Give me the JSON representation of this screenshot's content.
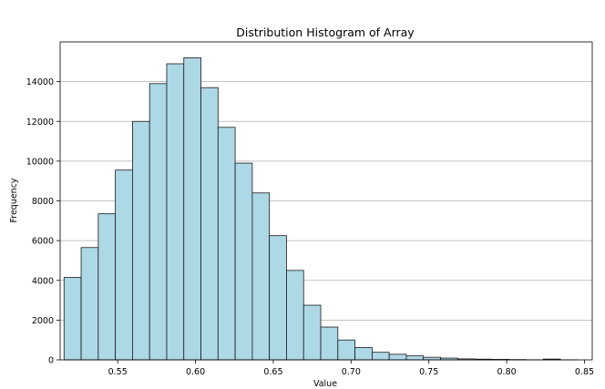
{
  "chart_data": {
    "type": "bar",
    "title": "Distribution Histogram of Array",
    "xlabel": "Value",
    "ylabel": "Frequency",
    "xlim": [
      0.513,
      0.855
    ],
    "ylim": [
      0,
      16000
    ],
    "grid": "y",
    "bar_color": "#add8e6",
    "edge_color": "#1a1a1a",
    "x_ticks": [
      {
        "value": 0.55,
        "label": "0.55"
      },
      {
        "value": 0.6,
        "label": "0.60"
      },
      {
        "value": 0.65,
        "label": "0.65"
      },
      {
        "value": 0.7,
        "label": "0.70"
      },
      {
        "value": 0.75,
        "label": "0.75"
      },
      {
        "value": 0.8,
        "label": "0.80"
      },
      {
        "value": 0.85,
        "label": "0.85"
      }
    ],
    "y_ticks": [
      {
        "value": 0,
        "label": "0"
      },
      {
        "value": 2000,
        "label": "2000"
      },
      {
        "value": 4000,
        "label": "4000"
      },
      {
        "value": 6000,
        "label": "6000"
      },
      {
        "value": 8000,
        "label": "8000"
      },
      {
        "value": 10000,
        "label": "10000"
      },
      {
        "value": 12000,
        "label": "12000"
      },
      {
        "value": 14000,
        "label": "14000"
      }
    ],
    "bin_edges": [
      0.5155,
      0.5265,
      0.5375,
      0.5485,
      0.5595,
      0.5705,
      0.5815,
      0.5925,
      0.6035,
      0.6145,
      0.6255,
      0.6365,
      0.6475,
      0.6585,
      0.6695,
      0.6805,
      0.6915,
      0.7025,
      0.7135,
      0.7245,
      0.7355,
      0.7465,
      0.7575,
      0.7685,
      0.7795,
      0.7905,
      0.8015,
      0.8125,
      0.8235,
      0.8345,
      0.8455
    ],
    "counts": [
      4150,
      5650,
      7350,
      9550,
      12000,
      13900,
      14900,
      15200,
      13700,
      11700,
      9900,
      8400,
      6250,
      4500,
      2750,
      1650,
      1000,
      620,
      380,
      280,
      200,
      130,
      90,
      50,
      35,
      25,
      15,
      5,
      40,
      3
    ]
  }
}
